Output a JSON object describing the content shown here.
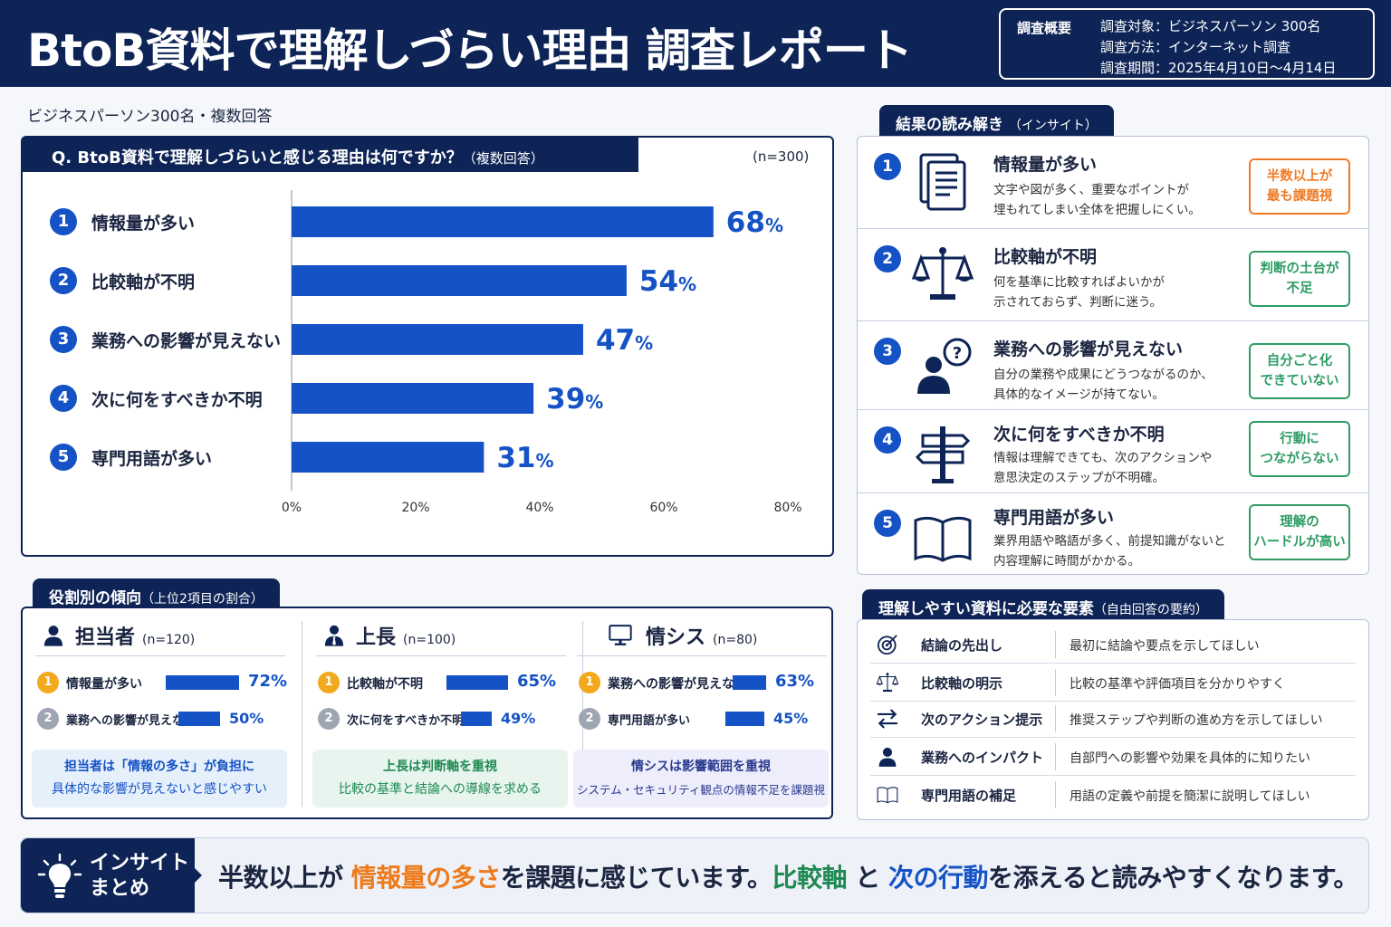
{
  "header": {
    "title": "BtoB資料で理解しづらい理由 調査レポート",
    "survey_label": "調査概要",
    "survey_rows": [
      "調査対象：ビジネスパーソン 300名",
      "調査方法：インターネット調査",
      "調査期間：2025年4月10日〜4月14日"
    ]
  },
  "subtitle": "ビジネスパーソン300名・複数回答",
  "question": {
    "text": "Q. BtoB資料で理解しづらいと感じる理由は何ですか？",
    "note": "（複数回答）",
    "n": "(n=300)"
  },
  "chart_data": {
    "type": "bar",
    "orientation": "horizontal",
    "title": "Q. BtoB資料で理解しづらいと感じる理由は何ですか？（複数回答）",
    "categories": [
      "情報量が多い",
      "比較軸が不明",
      "業務への影響が見えない",
      "次に何をすべきか不明",
      "専門用語が多い"
    ],
    "values": [
      68,
      54,
      47,
      39,
      31
    ],
    "value_unit": "%",
    "xlim": [
      0,
      80
    ],
    "xticks": [
      "0%",
      "20%",
      "40%",
      "60%",
      "80%"
    ],
    "bar_color": "#1452c6"
  },
  "insights": {
    "tab": "結果の読み解き",
    "tab_note": "（インサイト）",
    "items": [
      {
        "num": "1",
        "icon": "document-icon",
        "title": "情報量が多い",
        "desc": [
          "文字や図が多く、重要なポイントが",
          "埋もれてしまい全体を把握しにくい。"
        ],
        "tag": [
          "半数以上が",
          "最も課題視"
        ],
        "tag_color": "#f07a24"
      },
      {
        "num": "2",
        "icon": "scale-icon",
        "title": "比較軸が不明",
        "desc": [
          "何を基準に比較すればよいかが",
          "示されておらず、判断に迷う。"
        ],
        "tag": [
          "判断の土台が",
          "不足"
        ],
        "tag_color": "#2e9c64"
      },
      {
        "num": "3",
        "icon": "person-question-icon",
        "title": "業務への影響が見えない",
        "desc": [
          "自分の業務や成果にどうつながるのか、",
          "具体的なイメージが持てない。"
        ],
        "tag": [
          "自分ごと化",
          "できていない"
        ],
        "tag_color": "#2e9c64"
      },
      {
        "num": "4",
        "icon": "signpost-icon",
        "title": "次に何をすべきか不明",
        "desc": [
          "情報は理解できても、次のアクションや",
          "意思決定のステップが不明確。"
        ],
        "tag": [
          "行動に",
          "つながらない"
        ],
        "tag_color": "#2e9c64"
      },
      {
        "num": "5",
        "icon": "book-icon",
        "title": "専門用語が多い",
        "desc": [
          "業界用語や略語が多く、前提知識がないと",
          "内容理解に時間がかかる。"
        ],
        "tag": [
          "理解の",
          "ハードルが高い"
        ],
        "tag_color": "#2e9c64"
      }
    ]
  },
  "roles": {
    "tab": "役割別の傾向",
    "tab_note": "（上位2項目の割合）",
    "cols": [
      {
        "name": "担当者",
        "n": "(n=120)",
        "icon": "person-icon",
        "items": [
          {
            "rank": "1",
            "label": "情報量が多い",
            "value": 72,
            "pct": "72%"
          },
          {
            "rank": "2",
            "label": "業務への影響が見えない",
            "value": 50,
            "pct": "50%"
          }
        ],
        "note": [
          "担当者は「情報の多さ」が負担に",
          "具体的な影響が見えないと感じやすい"
        ],
        "note_bg": "#e6f0fb",
        "note_color": "#1452c6"
      },
      {
        "name": "上長",
        "n": "(n=100)",
        "icon": "manager-icon",
        "items": [
          {
            "rank": "1",
            "label": "比較軸が不明",
            "value": 65,
            "pct": "65%"
          },
          {
            "rank": "2",
            "label": "次に何をすべきか不明",
            "value": 49,
            "pct": "49%"
          }
        ],
        "note": [
          "上長は判断軸を重視",
          "比較の基準と結論への導線を求める"
        ],
        "note_bg": "#e7f5ee",
        "note_color": "#1f8a52"
      },
      {
        "name": "情シス",
        "n": "(n=80)",
        "icon": "monitor-icon",
        "items": [
          {
            "rank": "1",
            "label": "業務への影響が見えない",
            "value": 63,
            "pct": "63%"
          },
          {
            "rank": "2",
            "label": "専門用語が多い",
            "value": 45,
            "pct": "45%"
          }
        ],
        "note": [
          "情シスは影響範囲を重視",
          "システム・セキュリティ観点の情報不足を課題視"
        ],
        "note_bg": "#eeedfb",
        "note_color": "#2a3a8f"
      }
    ]
  },
  "requirements": {
    "tab": "理解しやすい資料に必要な要素",
    "tab_note": "（自由回答の要約）",
    "rows": [
      {
        "icon": "target-icon",
        "key": "結論の先出し",
        "value": "最初に結論や要点を示してほしい"
      },
      {
        "icon": "scale-icon",
        "key": "比較軸の明示",
        "value": "比較の基準や評価項目を分かりやすく"
      },
      {
        "icon": "arrows-icon",
        "key": "次のアクション提示",
        "value": "推奨ステップや判断の進め方を示してほしい"
      },
      {
        "icon": "person-icon",
        "key": "業務へのインパクト",
        "value": "自部門への影響や効果を具体的に知りたい"
      },
      {
        "icon": "book-icon",
        "key": "専門用語の補足",
        "value": "用語の定義や前提を簡潔に説明してほしい"
      }
    ]
  },
  "footer": {
    "label": [
      "インサイト",
      "まとめ"
    ],
    "parts": [
      "半数以上が",
      "情報量の多さ",
      "を課題に感じています。",
      "比較軸",
      "と",
      "次の行動",
      "を添えると読みやすくなります。"
    ]
  }
}
